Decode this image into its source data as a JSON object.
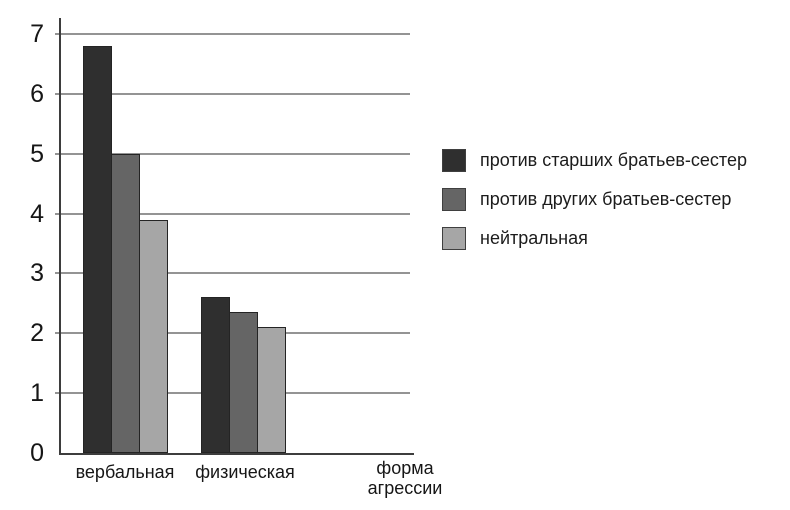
{
  "chart_data": {
    "type": "bar",
    "title": "",
    "categories": [
      "вербальная",
      "физическая"
    ],
    "series": [
      {
        "name": "против старших братьев-сестер",
        "color": "#2f2f2f",
        "values": [
          6.8,
          2.6
        ]
      },
      {
        "name": "против других братьев-сестер",
        "color": "#656565",
        "values": [
          5.0,
          2.35
        ]
      },
      {
        "name": "нейтральная",
        "color": "#a6a6a6",
        "values": [
          3.9,
          2.1
        ]
      }
    ],
    "xlabel": "форма агрессии",
    "ylabel": "",
    "ylim": [
      0,
      7
    ],
    "yticks": [
      0,
      1,
      2,
      3,
      4,
      5,
      6,
      7
    ],
    "grid": true,
    "legend_position": "right",
    "colors": {
      "axis": "#3d3d3d",
      "gridline": "#949494",
      "text": "#161616"
    }
  }
}
